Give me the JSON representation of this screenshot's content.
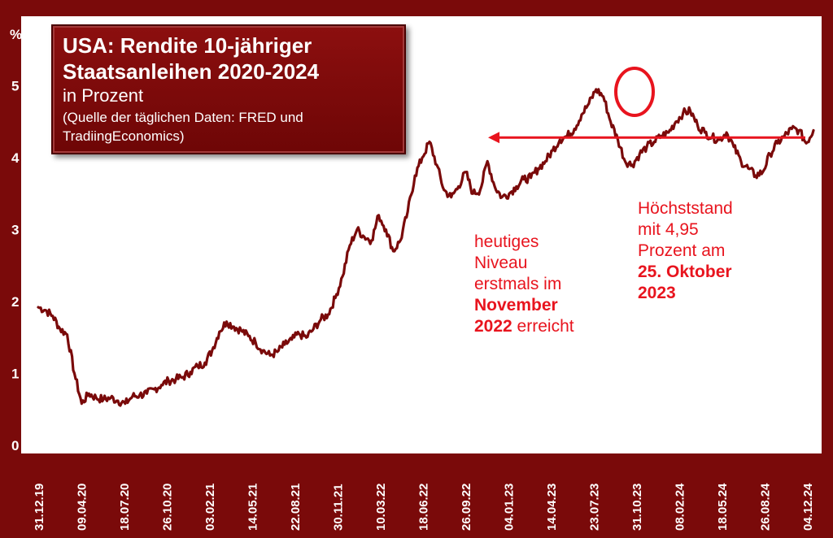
{
  "title": {
    "line1": "USA: Rendite 10-jähriger",
    "line2": "Staatsanleihen 2020-2024",
    "subtitle": "in Prozent",
    "source_line1": "(Quelle der täglichen Daten: FRED und",
    "source_line2": "TradiingEconomics)"
  },
  "annotation_left": {
    "line1": "heutiges",
    "line2": "Niveau",
    "line3": "erstmals im",
    "bold1": "November",
    "bold2": "2022",
    "tail": " erreicht"
  },
  "annotation_right": {
    "line1": "Höchststand",
    "line2": "mit 4,95",
    "line3": "Prozent am",
    "bold1": "25. Oktober",
    "bold2": "2023"
  },
  "colors": {
    "line": "#7a0a0a",
    "frame": "#7a0a0a",
    "annotation": "#e8141e",
    "arrow": "#e8141e"
  },
  "chart_data": {
    "type": "line",
    "ylabel": "%",
    "ylim": [
      0,
      5.5
    ],
    "yticks": [
      "0",
      "1",
      "2",
      "3",
      "4",
      "5"
    ],
    "xtick_labels": [
      "31.12.19",
      "09.04.20",
      "18.07.20",
      "26.10.20",
      "03.02.21",
      "14.05.21",
      "22.08.21",
      "30.11.21",
      "10.03.22",
      "18.06.22",
      "26.09.22",
      "04.01.23",
      "14.04.23",
      "23.07.23",
      "31.10.23",
      "08.02.24",
      "18.05.24",
      "26.08.24",
      "04.12.24"
    ],
    "series": [
      {
        "values": [
          1.92,
          1.88,
          1.8,
          1.62,
          1.54,
          1.0,
          0.58,
          0.72,
          0.66,
          0.64,
          0.66,
          0.62,
          0.58,
          0.68,
          0.7,
          0.72,
          0.78,
          0.84,
          0.9,
          0.92,
          0.95,
          1.02,
          1.1,
          1.15,
          1.32,
          1.58,
          1.72,
          1.65,
          1.6,
          1.52,
          1.43,
          1.32,
          1.25,
          1.3,
          1.4,
          1.47,
          1.55,
          1.5,
          1.62,
          1.75,
          1.82,
          2.05,
          2.35,
          2.78,
          3.0,
          2.9,
          2.85,
          3.2,
          3.0,
          2.7,
          2.85,
          3.25,
          3.75,
          4.0,
          4.22,
          3.9,
          3.55,
          3.45,
          3.6,
          3.8,
          3.5,
          3.55,
          3.95,
          3.6,
          3.45,
          3.5,
          3.6,
          3.7,
          3.72,
          3.85,
          3.95,
          4.1,
          4.25,
          4.3,
          4.4,
          4.6,
          4.75,
          4.95,
          4.85,
          4.5,
          4.25,
          3.95,
          3.9,
          4.05,
          4.15,
          4.22,
          4.3,
          4.35,
          4.5,
          4.62,
          4.65,
          4.45,
          4.35,
          4.28,
          4.25,
          4.35,
          4.15,
          3.95,
          3.85,
          3.75,
          3.8,
          4.05,
          4.2,
          4.3,
          4.4,
          4.38,
          4.2,
          4.38
        ]
      }
    ],
    "reference_level": 4.28
  }
}
